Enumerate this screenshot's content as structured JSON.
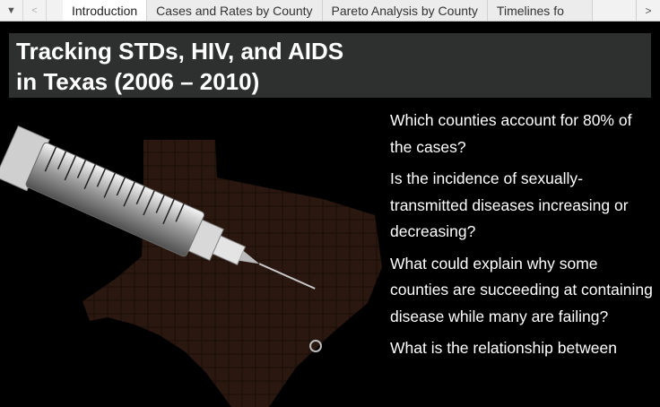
{
  "tabs": [
    "Introduction",
    "Cases and Rates by County",
    "Pareto Analysis by County",
    "Timelines fo"
  ],
  "title_lines": [
    "Tracking STDs, HIV, and AIDS",
    "in Texas (2006 – 2010)"
  ],
  "questions": [
    "Which counties account for 80% of the cases?",
    "Is the incidence of sexually-transmitted diseases increasing or decreasing?",
    "What could explain why some counties are succeeding at containing disease while many are failing?",
    "What is the relationship between"
  ],
  "icons": {
    "menu": "dropdown-triangle-icon",
    "prev": "chevron-left-icon",
    "next": "chevron-right-icon"
  },
  "colors": {
    "title_band": "#2e302f",
    "map": "#2a1610",
    "text": "#ffffff"
  }
}
